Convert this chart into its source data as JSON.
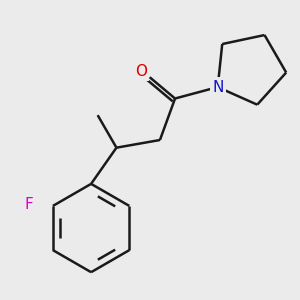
{
  "background_color": "#ebebeb",
  "bond_color": "#1a1a1a",
  "atom_colors": {
    "O": "#dd0000",
    "N": "#1111cc",
    "F": "#dd00cc"
  },
  "line_width": 1.8,
  "figsize": [
    3.0,
    3.0
  ],
  "dpi": 100,
  "xlim": [
    -0.85,
    1.15
  ],
  "ylim": [
    -1.05,
    0.95
  ]
}
